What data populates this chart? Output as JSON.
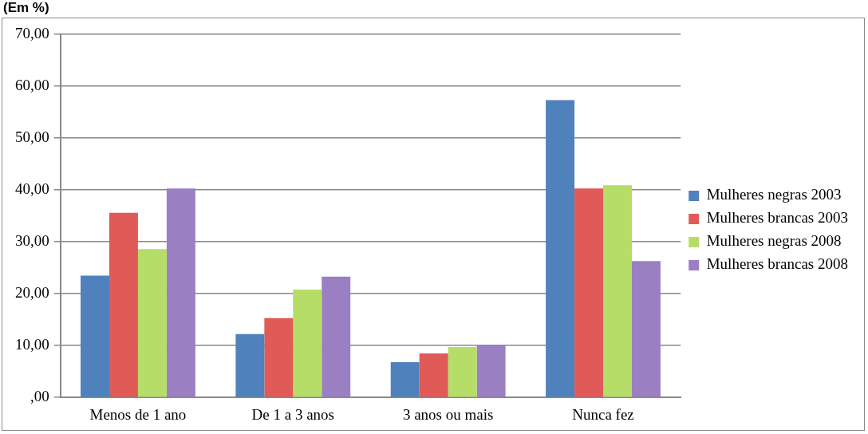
{
  "chart_data": {
    "type": "bar",
    "title": "(Em %)",
    "categories": [
      "Menos de 1 ano",
      "De 1 a 3 anos",
      "3 anos ou mais",
      "Nunca fez"
    ],
    "series": [
      {
        "name": "Mulheres negras 2003",
        "color": "#4f81bd",
        "values": [
          23.5,
          12.2,
          6.8,
          57.3
        ]
      },
      {
        "name": "Mulheres brancas 2003",
        "color": "#e05a57",
        "values": [
          35.6,
          15.3,
          8.5,
          40.3
        ]
      },
      {
        "name": "Mulheres negras 2008",
        "color": "#b5dd67",
        "values": [
          28.6,
          20.8,
          9.7,
          40.9
        ]
      },
      {
        "name": "Mulheres brancas 2008",
        "color": "#9b7fc3",
        "values": [
          40.3,
          23.3,
          10.1,
          26.3
        ]
      }
    ],
    "ylim": [
      0,
      70
    ],
    "yticks": [
      {
        "value": 0,
        "label": ",00"
      },
      {
        "value": 10,
        "label": "10,00"
      },
      {
        "value": 20,
        "label": "20,00"
      },
      {
        "value": 30,
        "label": "30,00"
      },
      {
        "value": 40,
        "label": "40,00"
      },
      {
        "value": 50,
        "label": "50,00"
      },
      {
        "value": 60,
        "label": "60,00"
      },
      {
        "value": 70,
        "label": "70,00"
      }
    ],
    "grid": "y",
    "legend": "right"
  }
}
